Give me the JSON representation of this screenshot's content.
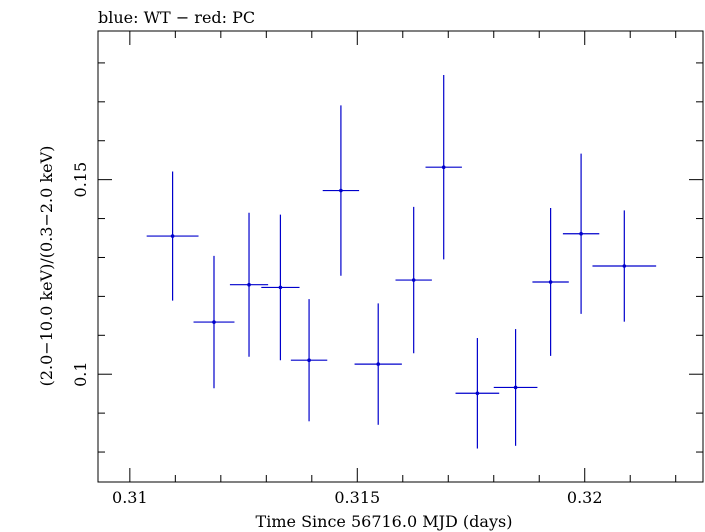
{
  "chart_data": {
    "type": "scatter",
    "title": "blue: WT − red: PC",
    "xlabel": "Time Since 56716.0 MJD (days)",
    "ylabel": "(2.0−10.0 keV)/(0.3−2.0 keV)",
    "xlim": [
      0.3093,
      0.3226
    ],
    "ylim": [
      0.0723,
      0.1882
    ],
    "x_major_ticks": [
      0.31,
      0.315,
      0.32
    ],
    "x_tick_labels": [
      "0.31",
      "0.315",
      "0.32"
    ],
    "y_major_ticks": [
      0.1,
      0.15
    ],
    "y_tick_labels": [
      "0.1",
      "0.15"
    ],
    "grid": false,
    "series": [
      {
        "color": "#0000cc",
        "points": [
          {
            "x": 0.31094,
            "xerr": 0.00057,
            "y": 0.1355,
            "yerr": 0.0166
          },
          {
            "x": 0.31185,
            "xerr": 0.00045,
            "y": 0.1134,
            "yerr": 0.017
          },
          {
            "x": 0.31262,
            "xerr": 0.00042,
            "y": 0.123,
            "yerr": 0.0185
          },
          {
            "x": 0.31331,
            "xerr": 0.00042,
            "y": 0.1223,
            "yerr": 0.0187
          },
          {
            "x": 0.31394,
            "xerr": 0.0004,
            "y": 0.1036,
            "yerr": 0.0157
          },
          {
            "x": 0.31464,
            "xerr": 0.0004,
            "y": 0.1472,
            "yerr": 0.0219
          },
          {
            "x": 0.31546,
            "xerr": 0.00052,
            "y": 0.1026,
            "yerr": 0.0156
          },
          {
            "x": 0.31624,
            "xerr": 0.0004,
            "y": 0.1242,
            "yerr": 0.0188
          },
          {
            "x": 0.3169,
            "xerr": 0.0004,
            "y": 0.1532,
            "yerr": 0.0237
          },
          {
            "x": 0.31764,
            "xerr": 0.00048,
            "y": 0.0951,
            "yerr": 0.0142
          },
          {
            "x": 0.31848,
            "xerr": 0.00048,
            "y": 0.0966,
            "yerr": 0.015
          },
          {
            "x": 0.31925,
            "xerr": 0.0004,
            "y": 0.1237,
            "yerr": 0.019
          },
          {
            "x": 0.31992,
            "xerr": 0.0004,
            "y": 0.1361,
            "yerr": 0.0206
          },
          {
            "x": 0.32087,
            "xerr": 0.0007,
            "y": 0.1278,
            "yerr": 0.0143
          }
        ]
      }
    ]
  }
}
